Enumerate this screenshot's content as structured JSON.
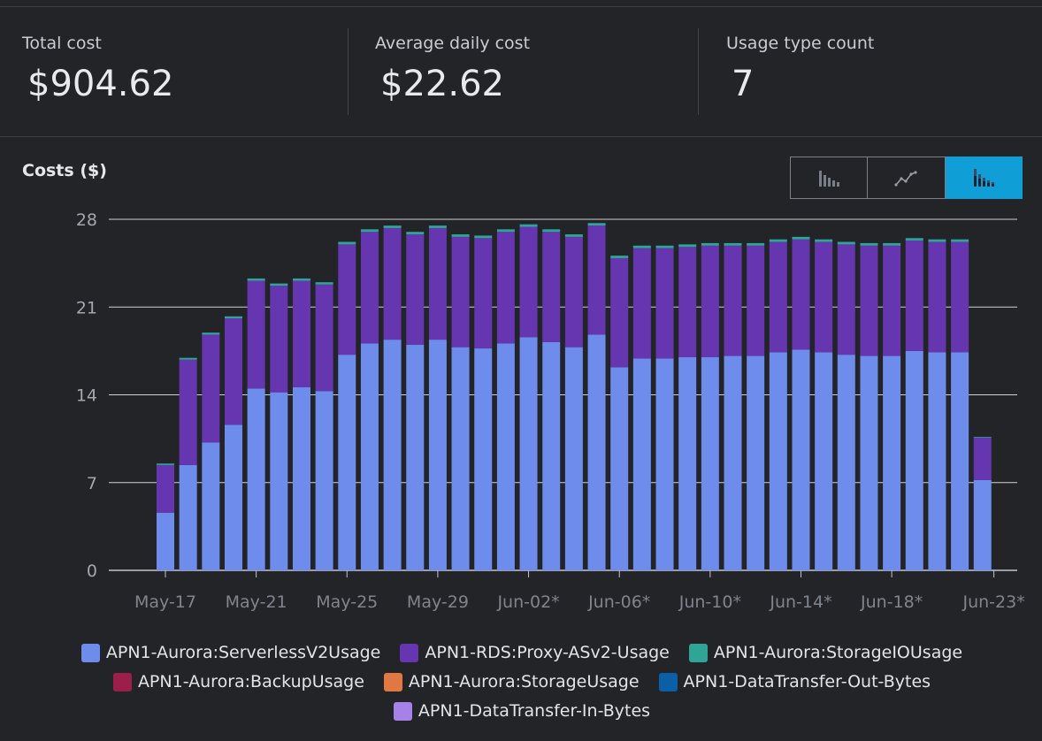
{
  "summary": {
    "total": {
      "label": "Total cost",
      "value": "$904.62"
    },
    "average": {
      "label": "Average daily cost",
      "value": "$22.62"
    },
    "count": {
      "label": "Usage type count",
      "value": "7"
    }
  },
  "chart_toggle": {
    "active": "stacked-bar",
    "options": [
      "bar",
      "line",
      "stacked-bar"
    ]
  },
  "colors": {
    "serverless": "#6d8cec",
    "proxy": "#6536b0",
    "storageio": "#2ea597",
    "backup": "#9b1f4a",
    "storage": "#e07941",
    "out": "#0a5fa6",
    "in": "#a682e8"
  },
  "chart_data": {
    "type": "bar",
    "stacked": true,
    "title": "Costs ($)",
    "ylim": [
      0,
      28
    ],
    "yticks": [
      0,
      7,
      14,
      21,
      28
    ],
    "grid": true,
    "legend_position": "bottom",
    "x_tick_labels": [
      "May-17",
      "May-21",
      "May-25",
      "May-29",
      "Jun-02*",
      "Jun-06*",
      "Jun-10*",
      "Jun-14*",
      "Jun-18*",
      "Jun-23*"
    ],
    "x_tick_indices": [
      0,
      4,
      8,
      12,
      16,
      20,
      24,
      28,
      32,
      36.5
    ],
    "series": [
      {
        "name": "APN1-Aurora:ServerlessV2Usage",
        "color_key": "serverless",
        "values": [
          4.6,
          8.4,
          10.2,
          11.6,
          14.5,
          14.2,
          14.6,
          14.3,
          17.2,
          18.1,
          18.4,
          18,
          18.4,
          17.8,
          17.7,
          18.1,
          18.6,
          18.2,
          17.8,
          18.8,
          16.2,
          16.9,
          16.9,
          17,
          17,
          17.1,
          17.1,
          17.4,
          17.6,
          17.4,
          17.2,
          17.1,
          17.1,
          17.5,
          17.4,
          17.4,
          7.2
        ]
      },
      {
        "name": "APN1-RDS:Proxy-ASv2-Usage",
        "color_key": "proxy",
        "values": [
          3.8,
          8.4,
          8.6,
          8.5,
          8.6,
          8.5,
          8.5,
          8.5,
          8.8,
          8.9,
          8.9,
          8.8,
          8.9,
          8.8,
          8.8,
          8.9,
          8.8,
          8.8,
          8.8,
          8.7,
          8.7,
          8.8,
          8.8,
          8.8,
          8.9,
          8.8,
          8.8,
          8.8,
          8.8,
          8.8,
          8.8,
          8.8,
          8.8,
          8.8,
          8.8,
          8.8,
          3.4
        ]
      },
      {
        "name": "APN1-Aurora:StorageIOUsage",
        "color_key": "storageio",
        "values": [
          0.12,
          0.15,
          0.16,
          0.16,
          0.18,
          0.18,
          0.18,
          0.18,
          0.2,
          0.2,
          0.2,
          0.2,
          0.2,
          0.2,
          0.2,
          0.2,
          0.2,
          0.2,
          0.2,
          0.2,
          0.2,
          0.2,
          0.2,
          0.2,
          0.2,
          0.2,
          0.2,
          0.2,
          0.2,
          0.2,
          0.2,
          0.2,
          0.2,
          0.2,
          0.2,
          0.2,
          0.05
        ]
      },
      {
        "name": "APN1-Aurora:BackupUsage",
        "color_key": "backup",
        "values": []
      },
      {
        "name": "APN1-Aurora:StorageUsage",
        "color_key": "storage",
        "values": []
      },
      {
        "name": "APN1-DataTransfer-Out-Bytes",
        "color_key": "out",
        "values": []
      },
      {
        "name": "APN1-DataTransfer-In-Bytes",
        "color_key": "in",
        "values": []
      }
    ]
  }
}
